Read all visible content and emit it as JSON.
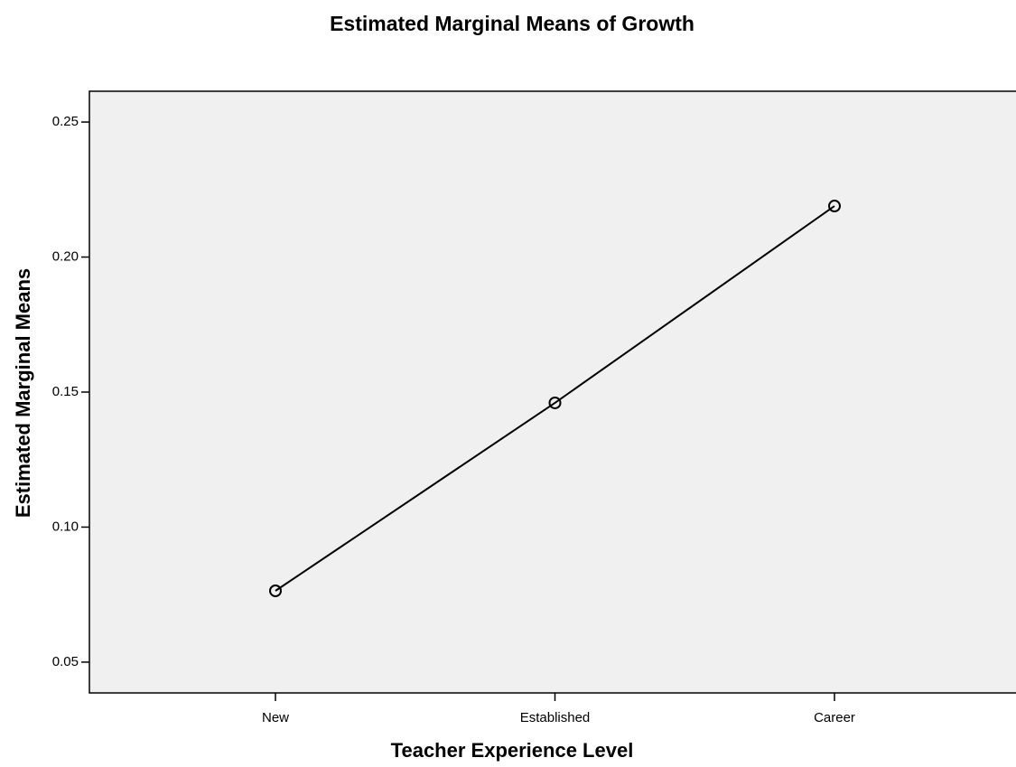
{
  "chart_data": {
    "type": "line",
    "title": "Estimated Marginal Means of Growth",
    "x_label": "Teacher Experience Level",
    "y_label": "Estimated Marginal Means",
    "categories": [
      "New",
      "Established",
      "Career"
    ],
    "series": [
      {
        "name": "Growth",
        "color": "#000000",
        "values": [
          0.0764,
          0.146,
          0.2189
        ]
      }
    ],
    "ylim": [
      0.0386,
      0.2614
    ],
    "yticks": [
      0.05,
      {
        "value": 0.1,
        "label": "0.10"
      },
      0.15,
      {
        "value": 0.2,
        "label": "0.20"
      },
      0.25
    ],
    "grid": false,
    "plot_background": "#f0f0f0"
  }
}
